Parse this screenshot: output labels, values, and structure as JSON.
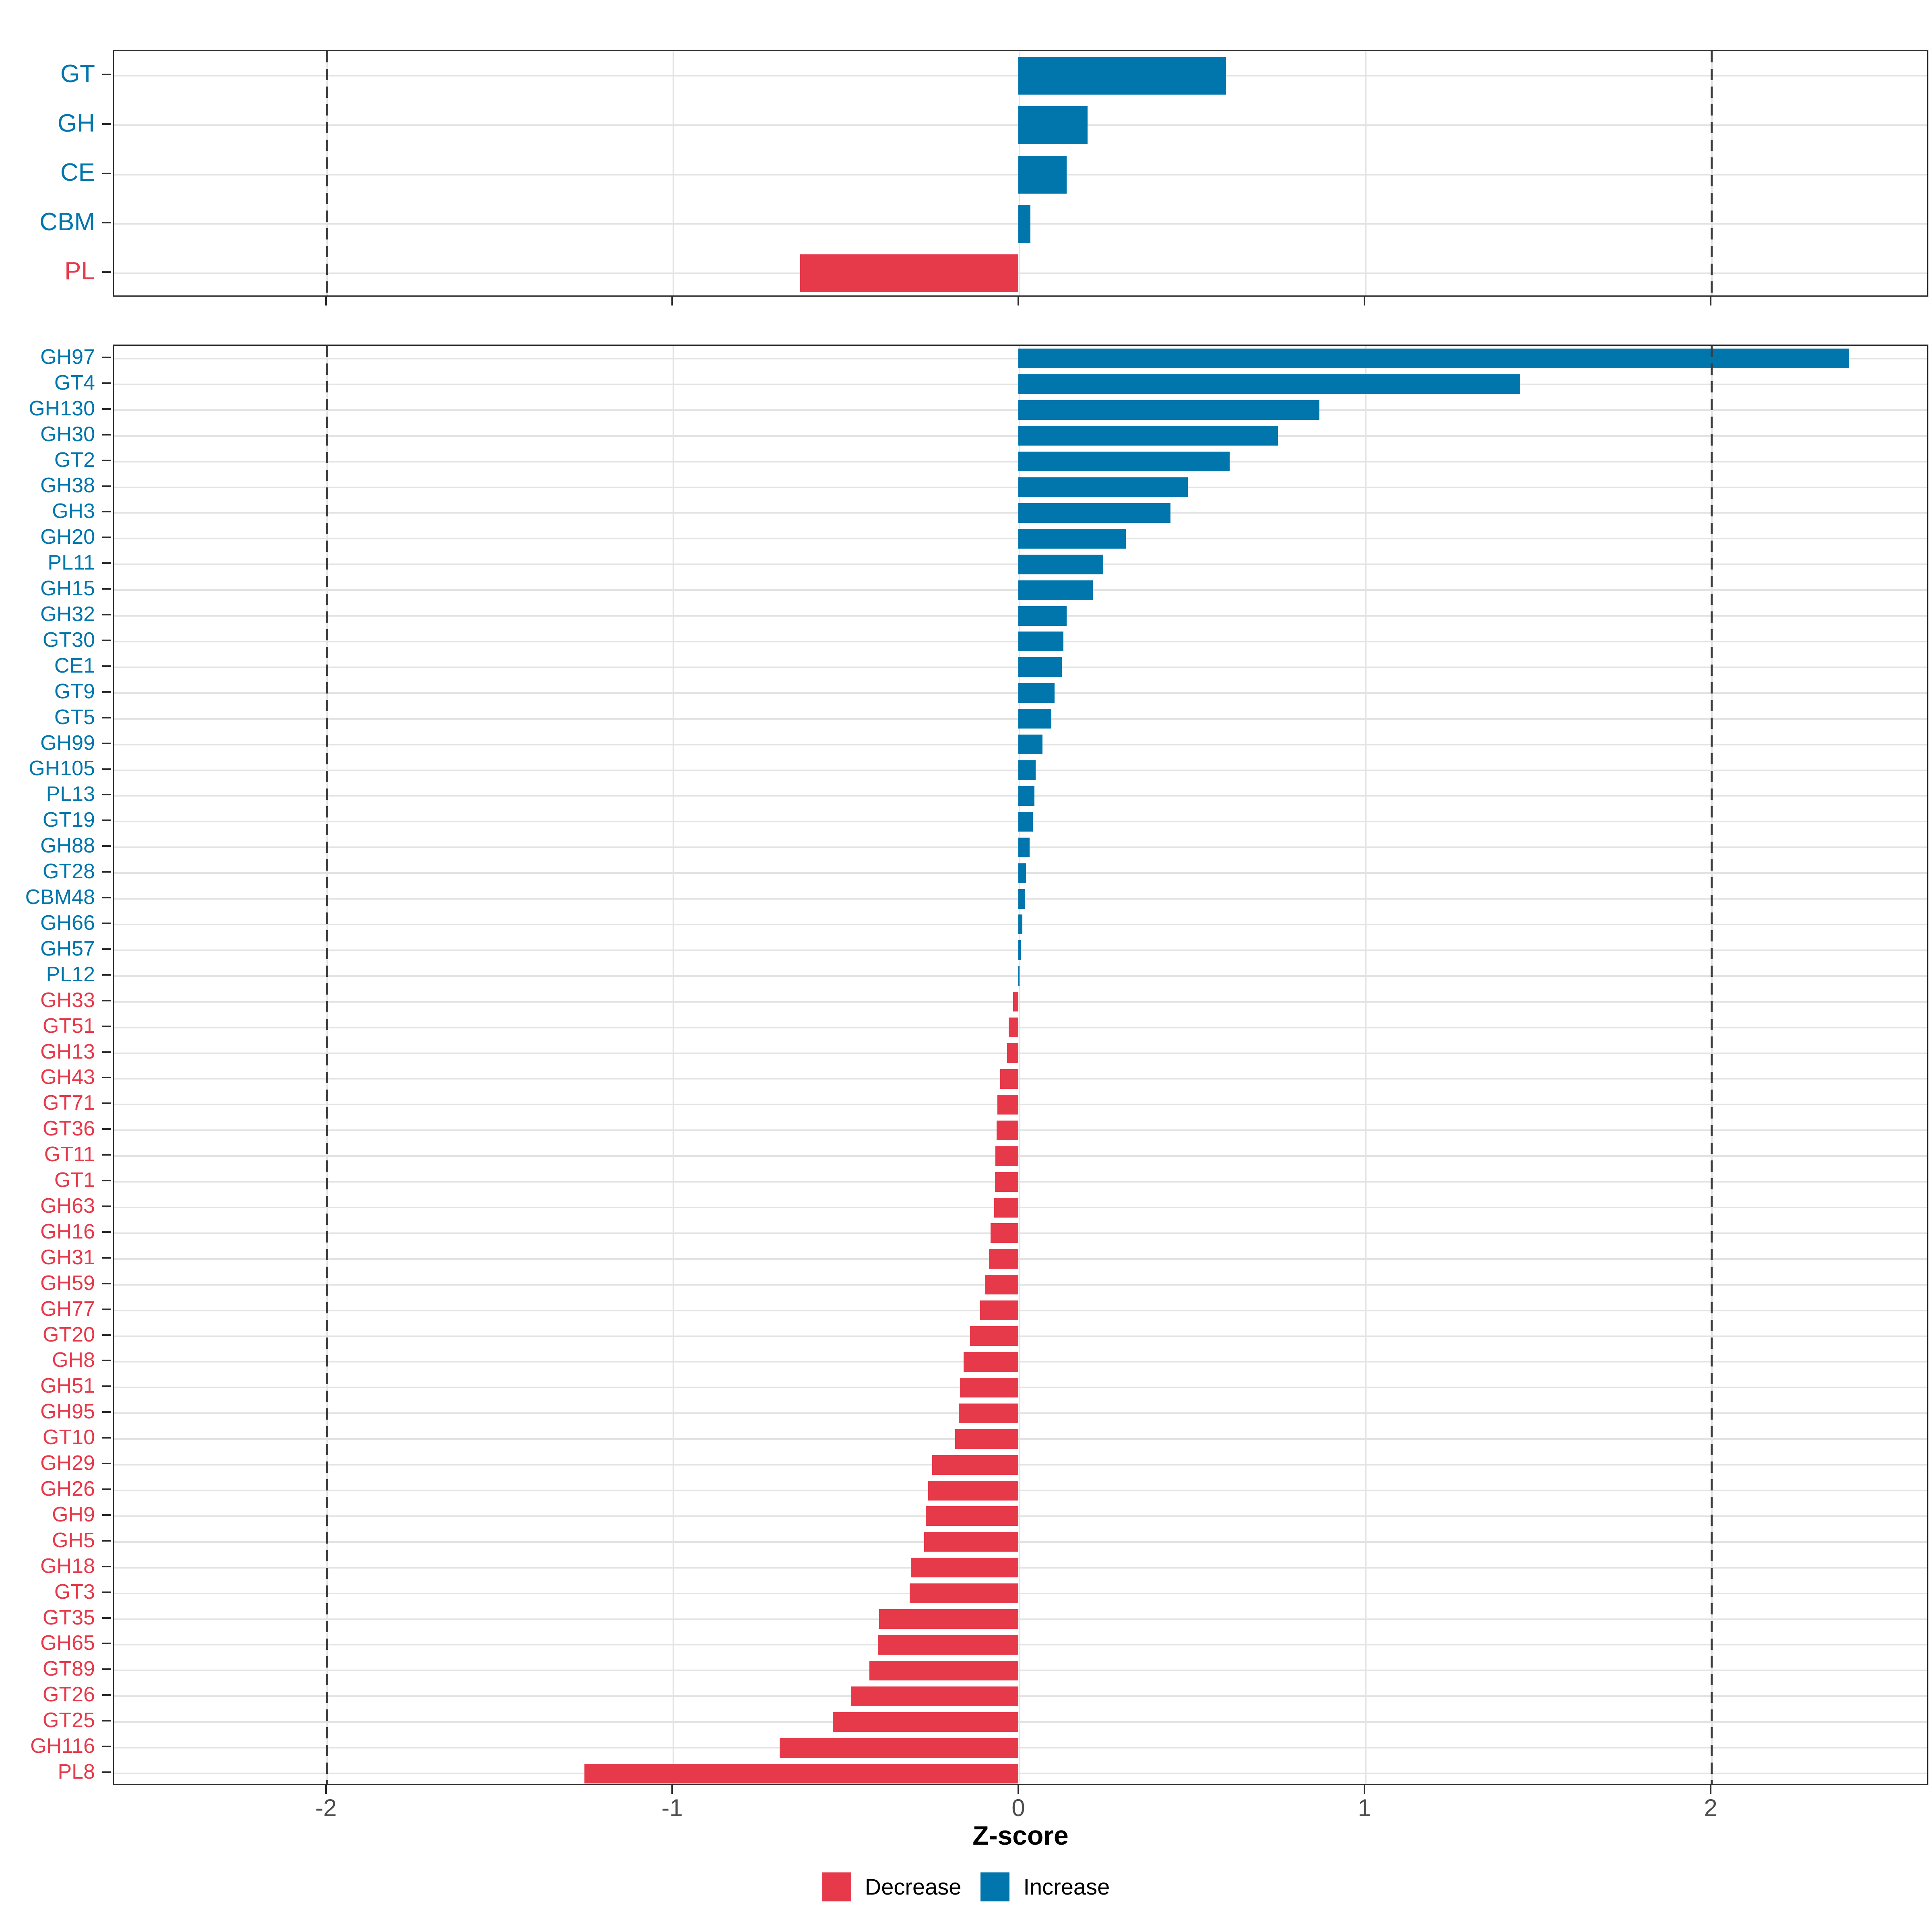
{
  "axis": {
    "title": "Z-score",
    "tick_labels": [
      "-2",
      "-1",
      "0",
      "1",
      "2"
    ],
    "tick_values": [
      -2,
      -1,
      0,
      1,
      2
    ]
  },
  "legend": {
    "decrease": "Decrease",
    "increase": "Increase"
  },
  "colors": {
    "increase": "#0076AD",
    "decrease": "#E6394A",
    "gridline": "#E3E3E3",
    "dashed_line": "#3C3C3C",
    "axis_text": "#4D4D4D",
    "border": "#2B2B2B"
  },
  "chart_data": [
    {
      "type": "bar",
      "orientation": "horizontal",
      "panel": "enzyme-class-summary",
      "xlim": [
        -2.62,
        2.63
      ],
      "grid": true,
      "dashed_vlines": [
        -2,
        2
      ],
      "xlabel": "Z-score",
      "categories": [
        "GT",
        "GH",
        "CE",
        "CBM",
        "PL"
      ],
      "values": [
        0.6,
        0.2,
        0.14,
        0.035,
        -0.63
      ]
    },
    {
      "type": "bar",
      "orientation": "horizontal",
      "panel": "cazyme-families",
      "xlim": [
        -2.62,
        2.63
      ],
      "grid": true,
      "dashed_vlines": [
        -2,
        2
      ],
      "xlabel": "Z-score",
      "categories": [
        "GH97",
        "GT4",
        "GH130",
        "GH30",
        "GT2",
        "GH38",
        "GH3",
        "GH20",
        "PL11",
        "GH15",
        "GH32",
        "GT30",
        "CE1",
        "GT9",
        "GT5",
        "GH99",
        "GH105",
        "PL13",
        "GT19",
        "GH88",
        "GT28",
        "CBM48",
        "GH66",
        "GH57",
        "PL12",
        "GH33",
        "GT51",
        "GH13",
        "GH43",
        "GT71",
        "GT36",
        "GT11",
        "GT1",
        "GH63",
        "GH16",
        "GH31",
        "GH59",
        "GH77",
        "GT20",
        "GH8",
        "GH51",
        "GH95",
        "GT10",
        "GH29",
        "GH26",
        "GH9",
        "GH5",
        "GH18",
        "GT3",
        "GT35",
        "GH65",
        "GT89",
        "GT26",
        "GT25",
        "GH116",
        "PL8"
      ],
      "values": [
        2.4,
        1.45,
        0.87,
        0.75,
        0.61,
        0.49,
        0.44,
        0.31,
        0.245,
        0.215,
        0.14,
        0.13,
        0.125,
        0.105,
        0.095,
        0.07,
        0.05,
        0.046,
        0.042,
        0.032,
        0.022,
        0.02,
        0.012,
        0.007,
        0.004,
        -0.015,
        -0.028,
        -0.033,
        -0.052,
        -0.06,
        -0.063,
        -0.066,
        -0.068,
        -0.07,
        -0.08,
        -0.085,
        -0.096,
        -0.11,
        -0.14,
        -0.158,
        -0.169,
        -0.172,
        -0.182,
        -0.249,
        -0.261,
        -0.267,
        -0.272,
        -0.31,
        -0.314,
        -0.402,
        -0.406,
        -0.43,
        -0.482,
        -0.536,
        -0.69,
        -1.253
      ]
    }
  ]
}
